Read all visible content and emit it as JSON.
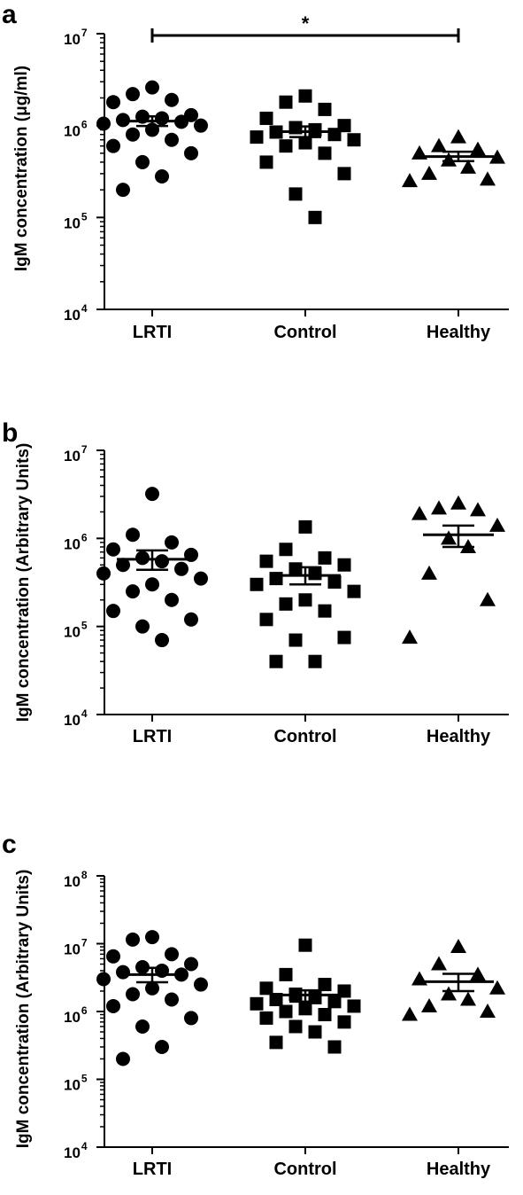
{
  "chart_data": [
    {
      "panel": "a",
      "type": "scatter",
      "ylabel": "IgM concentration (μg/ml)",
      "yscale": "log",
      "ylim": [
        10000,
        10000000
      ],
      "yticks": [
        {
          "base": "10",
          "exp": "4"
        },
        {
          "base": "10",
          "exp": "5"
        },
        {
          "base": "10",
          "exp": "6"
        },
        {
          "base": "10",
          "exp": "7"
        }
      ],
      "categories": [
        "LRTI",
        "Control",
        "Healthy"
      ],
      "significance": {
        "from": 0,
        "to": 2,
        "label": "*"
      },
      "series": [
        {
          "category": "LRTI",
          "marker": "circle",
          "values": [
            2600000,
            2200000,
            1900000,
            1800000,
            1300000,
            1250000,
            1200000,
            1150000,
            1100000,
            1050000,
            1000000,
            900000,
            800000,
            700000,
            600000,
            500000,
            400000,
            280000,
            200000
          ],
          "mean": 1120000,
          "sem_low": 990000,
          "sem_high": 1260000
        },
        {
          "category": "Control",
          "marker": "square",
          "values": [
            2100000,
            1800000,
            1500000,
            1200000,
            1000000,
            950000,
            900000,
            850000,
            800000,
            750000,
            700000,
            650000,
            600000,
            500000,
            400000,
            300000,
            180000,
            100000
          ],
          "mean": 860000,
          "sem_low": 750000,
          "sem_high": 980000
        },
        {
          "category": "Healthy",
          "marker": "triangle",
          "values": [
            750000,
            600000,
            550000,
            500000,
            450000,
            420000,
            350000,
            300000,
            260000,
            250000
          ],
          "mean": 460000,
          "sem_low": 410000,
          "sem_high": 520000
        }
      ]
    },
    {
      "panel": "b",
      "type": "scatter",
      "ylabel": "IgM concentration (Arbitrary Units)",
      "yscale": "log",
      "ylim": [
        10000,
        10000000
      ],
      "yticks": [
        {
          "base": "10",
          "exp": "4"
        },
        {
          "base": "10",
          "exp": "5"
        },
        {
          "base": "10",
          "exp": "6"
        },
        {
          "base": "10",
          "exp": "7"
        }
      ],
      "categories": [
        "LRTI",
        "Control",
        "Healthy"
      ],
      "series": [
        {
          "category": "LRTI",
          "marker": "circle",
          "values": [
            3200000,
            1100000,
            900000,
            750000,
            650000,
            600000,
            550000,
            500000,
            450000,
            400000,
            350000,
            300000,
            250000,
            200000,
            150000,
            120000,
            100000,
            70000
          ],
          "mean": 580000,
          "sem_low": 440000,
          "sem_high": 730000
        },
        {
          "category": "Control",
          "marker": "square",
          "values": [
            1350000,
            750000,
            600000,
            550000,
            500000,
            450000,
            400000,
            350000,
            320000,
            300000,
            250000,
            200000,
            180000,
            150000,
            120000,
            75000,
            70000,
            40000,
            40000
          ],
          "mean": 380000,
          "sem_low": 300000,
          "sem_high": 470000
        },
        {
          "category": "Healthy",
          "marker": "triangle",
          "values": [
            2500000,
            2200000,
            2100000,
            1900000,
            1400000,
            1000000,
            800000,
            400000,
            200000,
            75000
          ],
          "mean": 1100000,
          "sem_low": 800000,
          "sem_high": 1400000
        }
      ]
    },
    {
      "panel": "c",
      "type": "scatter",
      "ylabel": "IgM concentration (Arbitrary Units)",
      "yscale": "log",
      "ylim": [
        10000,
        100000000
      ],
      "yticks": [
        {
          "base": "10",
          "exp": "4"
        },
        {
          "base": "10",
          "exp": "5"
        },
        {
          "base": "10",
          "exp": "6"
        },
        {
          "base": "10",
          "exp": "7"
        },
        {
          "base": "10",
          "exp": "8"
        }
      ],
      "categories": [
        "LRTI",
        "Control",
        "Healthy"
      ],
      "series": [
        {
          "category": "LRTI",
          "marker": "circle",
          "values": [
            12500000,
            11500000,
            7000000,
            6500000,
            5000000,
            4500000,
            4000000,
            3800000,
            3500000,
            3000000,
            2500000,
            2200000,
            1800000,
            1500000,
            1200000,
            800000,
            600000,
            300000,
            200000
          ],
          "mean": 3500000,
          "sem_low": 2700000,
          "sem_high": 4400000
        },
        {
          "category": "Control",
          "marker": "square",
          "values": [
            9500000,
            3500000,
            2500000,
            2200000,
            2000000,
            1800000,
            1600000,
            1500000,
            1400000,
            1300000,
            1200000,
            1100000,
            1000000,
            900000,
            800000,
            700000,
            600000,
            500000,
            350000,
            300000
          ],
          "mean": 1750000,
          "sem_low": 1400000,
          "sem_high": 2050000
        },
        {
          "category": "Healthy",
          "marker": "triangle",
          "values": [
            9000000,
            5000000,
            3500000,
            3000000,
            2200000,
            1800000,
            1500000,
            1200000,
            1000000,
            900000
          ],
          "mean": 2750000,
          "sem_low": 2000000,
          "sem_high": 3600000
        }
      ]
    }
  ]
}
